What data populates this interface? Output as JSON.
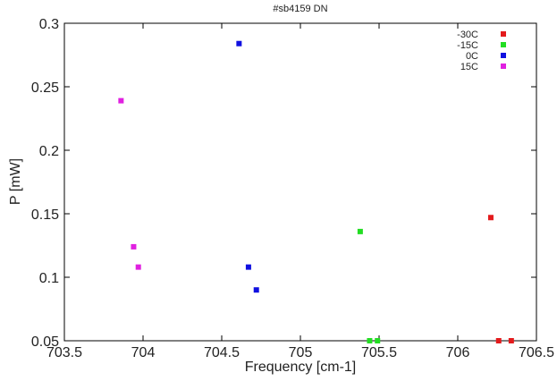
{
  "chart_data": {
    "type": "scatter",
    "title": "#sb4159 DN",
    "xlabel": "Frequency [cm-1]",
    "ylabel": "P [mW]",
    "xlim": [
      703.5,
      706.5
    ],
    "ylim": [
      0.05,
      0.3
    ],
    "xticks": [
      703.5,
      704,
      704.5,
      705,
      705.5,
      706,
      706.5
    ],
    "yticks": [
      0.05,
      0.1,
      0.15,
      0.2,
      0.25,
      0.3
    ],
    "xtick_labels": [
      "703.5",
      "704",
      "704.5",
      "705",
      "705.5",
      "706",
      "706.5"
    ],
    "ytick_labels": [
      "0.05",
      "0.1",
      "0.15",
      "0.2",
      "0.25",
      "0.3"
    ],
    "grid": false,
    "legend_position": "top-right",
    "series": [
      {
        "name": "-30C",
        "color": "#e31a1c",
        "points": [
          [
            706.21,
            0.147
          ],
          [
            706.26,
            0.05
          ],
          [
            706.34,
            0.05
          ]
        ]
      },
      {
        "name": "-15C",
        "color": "#22dd22",
        "points": [
          [
            705.38,
            0.136
          ],
          [
            705.44,
            0.05
          ],
          [
            705.49,
            0.05
          ]
        ]
      },
      {
        "name": "0C",
        "color": "#1010e0",
        "points": [
          [
            704.61,
            0.284
          ],
          [
            704.67,
            0.108
          ],
          [
            704.72,
            0.09
          ]
        ]
      },
      {
        "name": "15C",
        "color": "#e020e0",
        "points": [
          [
            703.86,
            0.239
          ],
          [
            703.94,
            0.124
          ],
          [
            703.97,
            0.108
          ]
        ]
      }
    ]
  }
}
